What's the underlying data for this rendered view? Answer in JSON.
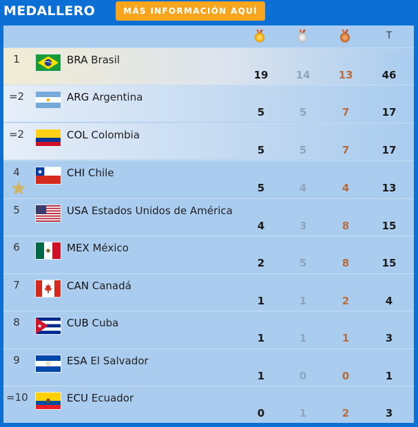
{
  "header": {
    "title": "MEDALLERO",
    "info_button": "MÁS INFORMACIÓN AQUÍ"
  },
  "columns": {
    "gold_icon": "gold-medal-icon",
    "silver_icon": "silver-medal-icon",
    "bronze_icon": "bronze-medal-icon",
    "total": "T"
  },
  "colors": {
    "background": "#0b6fd6",
    "table": "#a9ccef",
    "button": "#f7a51c",
    "gold": "#f5b81c",
    "silver": "#c9ccd0",
    "bronze": "#d8803e"
  },
  "rows": [
    {
      "rank": "1",
      "code": "BRA",
      "name": "Brasil",
      "gold": "19",
      "silver": "14",
      "bronze": "13",
      "total": "46"
    },
    {
      "rank": "=2",
      "code": "ARG",
      "name": "Argentina",
      "gold": "5",
      "silver": "5",
      "bronze": "7",
      "total": "17"
    },
    {
      "rank": "=2",
      "code": "COL",
      "name": "Colombia",
      "gold": "5",
      "silver": "5",
      "bronze": "7",
      "total": "17"
    },
    {
      "rank": "4",
      "code": "CHI",
      "name": "Chile",
      "gold": "5",
      "silver": "4",
      "bronze": "4",
      "total": "13",
      "icon": "star-icon"
    },
    {
      "rank": "5",
      "code": "USA",
      "name": "Estados Unidos de América",
      "gold": "4",
      "silver": "3",
      "bronze": "8",
      "total": "15"
    },
    {
      "rank": "6",
      "code": "MEX",
      "name": "México",
      "gold": "2",
      "silver": "5",
      "bronze": "8",
      "total": "15"
    },
    {
      "rank": "7",
      "code": "CAN",
      "name": "Canadá",
      "gold": "1",
      "silver": "1",
      "bronze": "2",
      "total": "4"
    },
    {
      "rank": "8",
      "code": "CUB",
      "name": "Cuba",
      "gold": "1",
      "silver": "1",
      "bronze": "1",
      "total": "3"
    },
    {
      "rank": "9",
      "code": "ESA",
      "name": "El Salvador",
      "gold": "1",
      "silver": "0",
      "bronze": "0",
      "total": "1"
    },
    {
      "rank": "=10",
      "code": "ECU",
      "name": "Ecuador",
      "gold": "0",
      "silver": "1",
      "bronze": "2",
      "total": "3"
    }
  ]
}
